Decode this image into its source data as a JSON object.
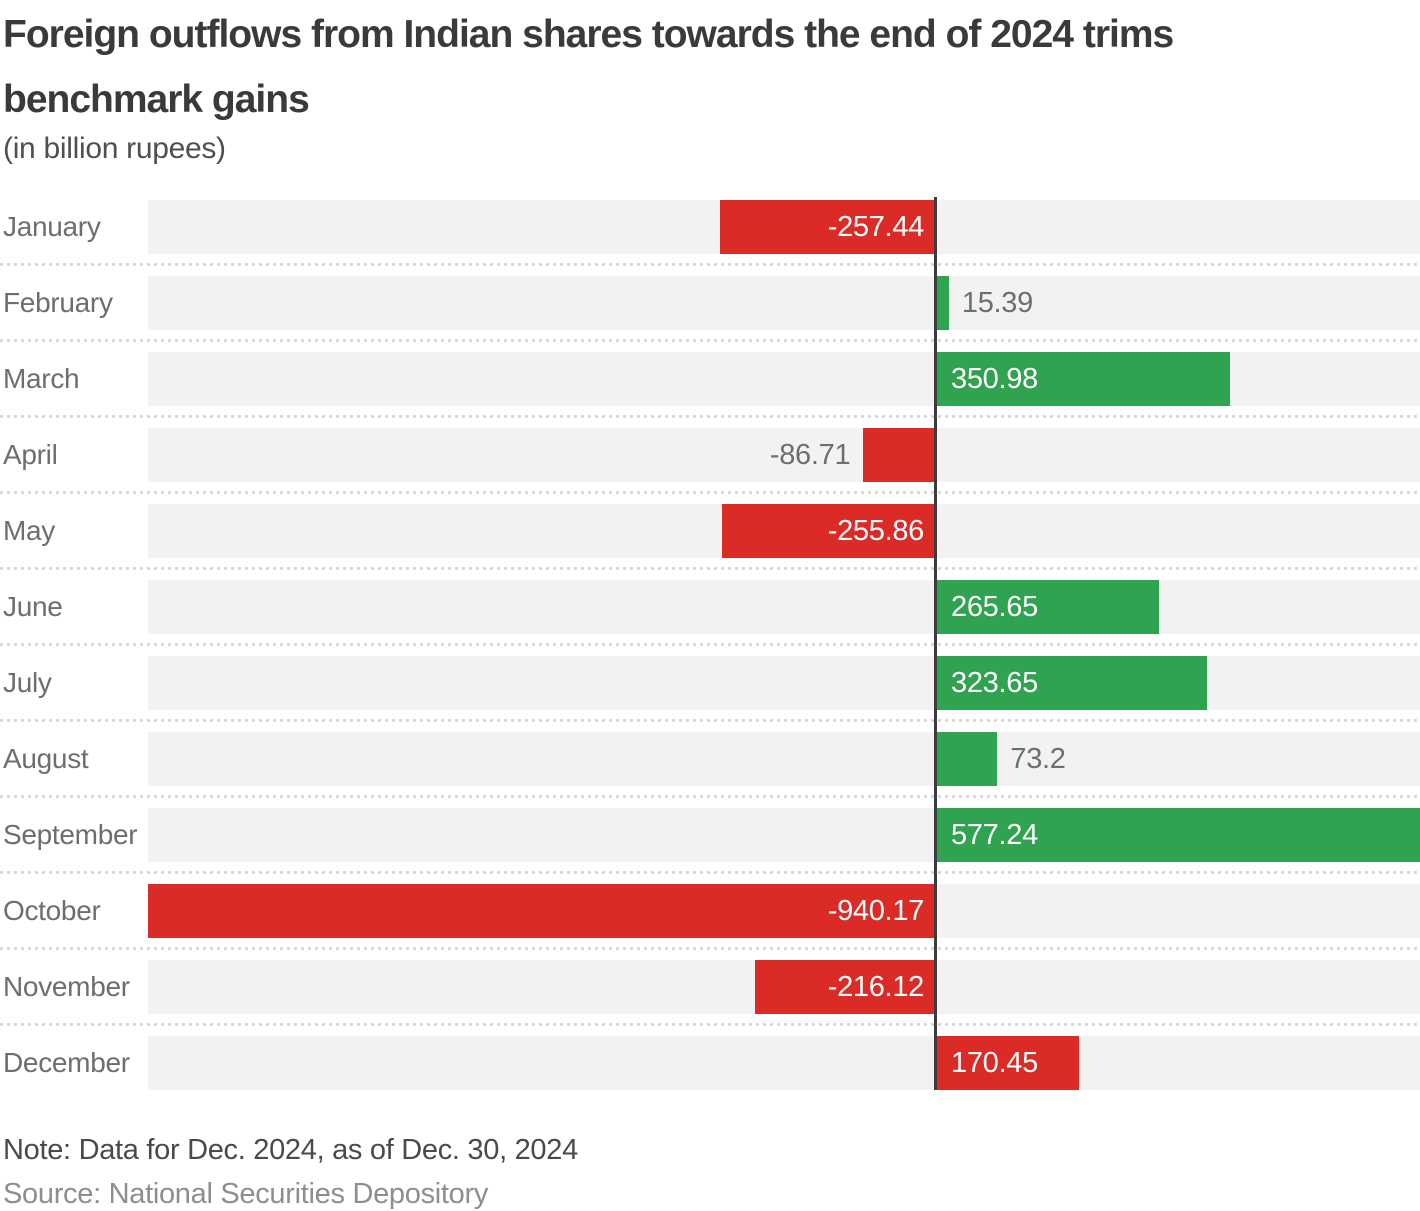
{
  "header": {
    "title_lines": [
      "Foreign outflows from Indian shares towards the end of 2024 trims",
      "benchmark gains"
    ],
    "subtitle": "(in billion rupees)"
  },
  "chart_data": {
    "type": "bar",
    "orientation": "horizontal",
    "title": "Foreign outflows from Indian shares towards the end of 2024 trims benchmark gains",
    "subtitle": "(in billion rupees)",
    "categories": [
      "January",
      "February",
      "March",
      "April",
      "May",
      "June",
      "July",
      "August",
      "September",
      "October",
      "November",
      "December"
    ],
    "values": [
      -257.44,
      15.39,
      350.98,
      -86.71,
      -255.86,
      265.65,
      323.65,
      73.2,
      577.24,
      -940.17,
      -216.12,
      170.45
    ],
    "value_labels": [
      "-257.44",
      "15.39",
      "350.98",
      "-86.71",
      "-255.86",
      "265.65",
      "323.65",
      "73.2",
      "577.24",
      "-940.17",
      "-216.12",
      "170.45"
    ],
    "bar_colors": [
      "red",
      "green",
      "green",
      "red",
      "red",
      "green",
      "green",
      "green",
      "green",
      "red",
      "red",
      "red"
    ],
    "xlim": [
      -940.17,
      577.24
    ],
    "grid": false,
    "zero_line": true,
    "legend": "none"
  },
  "palette": {
    "red": "#db2b26",
    "green": "#30a351",
    "track": "#f2f2f2",
    "separator": "#d8d8d8",
    "zero_line": "#3c3c3c",
    "label_grey": "#6e6e6e",
    "inside_label": "#ffffff"
  },
  "footer": {
    "note": "Note: Data for Dec. 2024, as of Dec. 30, 2024",
    "source": "Source: National Securities Depository"
  }
}
